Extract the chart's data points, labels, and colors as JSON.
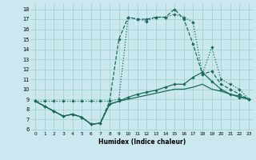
{
  "xlabel": "Humidex (Indice chaleur)",
  "background_color": "#cbe8f0",
  "grid_color": "#9ecfcc",
  "line_color": "#1a6b5a",
  "xlim": [
    -0.5,
    23.5
  ],
  "ylim": [
    5.8,
    18.6
  ],
  "xticks": [
    0,
    1,
    2,
    3,
    4,
    5,
    6,
    7,
    8,
    9,
    10,
    11,
    12,
    13,
    14,
    15,
    16,
    17,
    18,
    19,
    20,
    21,
    22,
    23
  ],
  "yticks": [
    6,
    7,
    8,
    9,
    10,
    11,
    12,
    13,
    14,
    15,
    16,
    17,
    18
  ],
  "line_dotted_x": [
    0,
    1,
    2,
    3,
    4,
    5,
    6,
    7,
    8,
    9,
    10,
    11,
    12,
    13,
    14,
    15,
    16,
    17,
    18,
    19,
    20,
    21,
    22,
    23
  ],
  "line_dotted_y": [
    8.8,
    8.8,
    8.8,
    8.8,
    8.8,
    8.8,
    8.8,
    8.8,
    8.8,
    9.0,
    17.2,
    17.0,
    16.8,
    17.2,
    17.2,
    17.5,
    17.2,
    16.7,
    11.5,
    14.2,
    11.0,
    10.5,
    10.0,
    9.0
  ],
  "line_solid1_x": [
    0,
    1,
    2,
    3,
    4,
    5,
    6,
    7,
    8,
    9,
    10,
    11,
    12,
    13,
    14,
    15,
    16,
    17,
    18,
    19,
    20,
    21,
    22,
    23
  ],
  "line_solid1_y": [
    8.8,
    8.3,
    7.8,
    7.3,
    7.5,
    7.2,
    6.5,
    6.6,
    8.8,
    15.0,
    17.2,
    17.0,
    17.0,
    17.2,
    17.2,
    18.0,
    17.0,
    14.5,
    11.5,
    11.8,
    10.5,
    10.0,
    9.5,
    9.0
  ],
  "line_solid2_x": [
    0,
    1,
    2,
    3,
    4,
    5,
    6,
    7,
    8,
    9,
    10,
    11,
    12,
    13,
    14,
    15,
    16,
    17,
    18,
    19,
    20,
    21,
    22,
    23
  ],
  "line_solid2_y": [
    8.8,
    8.3,
    7.8,
    7.3,
    7.5,
    7.2,
    6.5,
    6.6,
    8.5,
    8.8,
    9.2,
    9.5,
    9.7,
    9.9,
    10.2,
    10.5,
    10.5,
    11.2,
    11.7,
    10.8,
    10.0,
    9.5,
    9.2,
    9.0
  ],
  "line_solid3_x": [
    0,
    1,
    2,
    3,
    4,
    5,
    6,
    7,
    8,
    9,
    10,
    11,
    12,
    13,
    14,
    15,
    16,
    17,
    18,
    19,
    20,
    21,
    22,
    23
  ],
  "line_solid3_y": [
    8.8,
    8.3,
    7.8,
    7.3,
    7.5,
    7.2,
    6.5,
    6.6,
    8.5,
    8.8,
    9.0,
    9.2,
    9.4,
    9.6,
    9.8,
    10.0,
    10.0,
    10.2,
    10.5,
    10.0,
    9.8,
    9.5,
    9.3,
    9.0
  ]
}
